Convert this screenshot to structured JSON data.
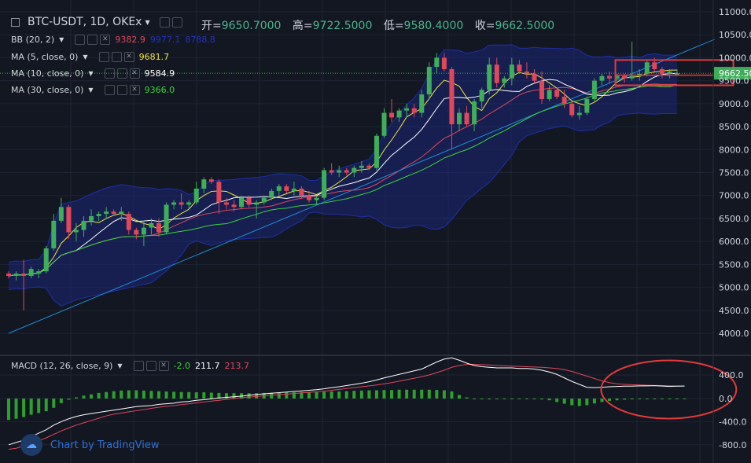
{
  "header": {
    "symbol": "BTC-USDT, 1D, OKEx",
    "open_label": "开",
    "open_value": "9650.7000",
    "high_label": "高",
    "high_value": "9722.5000",
    "low_label": "低",
    "low_value": "9580.4000",
    "close_label": "收",
    "close_value": "9662.5000"
  },
  "indicators": [
    {
      "label": "BB (20, 2)",
      "values": [
        "9382.9",
        "9977.1",
        "8788.8"
      ],
      "colors": [
        "#e0475a",
        "#2233bb",
        "#2233bb"
      ]
    },
    {
      "label": "MA (5, close, 0)",
      "values": [
        "9681.7"
      ],
      "colors": [
        "#f0e442"
      ]
    },
    {
      "label": "MA (10, close, 0)",
      "values": [
        "9584.9"
      ],
      "colors": [
        "#ffffff"
      ]
    },
    {
      "label": "MA (30, close, 0)",
      "values": [
        "9366.0"
      ],
      "colors": [
        "#3bd43b"
      ]
    }
  ],
  "macd": {
    "label": "MACD (12, 26, close, 9)",
    "values": [
      "-2.0",
      "211.7",
      "213.7"
    ],
    "colors": [
      "#3bd43b",
      "#ffffff",
      "#e0475a"
    ]
  },
  "watermark": "Chart by TradingView",
  "price_badge": "9662.500",
  "colors": {
    "up": "#3fae5a",
    "down": "#e0475a",
    "bb": "#1a2a8a",
    "ma5": "#f0e442",
    "ma10": "#ffffff",
    "ma30": "#3bd43b",
    "macd_line": "#ffffff",
    "signal_line": "#e0475a",
    "trend": "#1f8bd6",
    "annotation": "#e23b3b"
  },
  "chart_data": [
    {
      "type": "candlestick",
      "title": "BTC-USDT, 1D, OKEx",
      "y_ticks": [
        4000,
        4500,
        5000,
        5500,
        6000,
        6500,
        7000,
        7500,
        8000,
        8500,
        9000,
        9500,
        10000,
        10500,
        11000
      ],
      "ylim": [
        3850,
        11050
      ],
      "candles": [
        [
          5300,
          5350,
          5200,
          5250
        ],
        [
          5250,
          5350,
          5150,
          5300
        ],
        [
          5300,
          5600,
          4500,
          5250
        ],
        [
          5250,
          5450,
          5200,
          5400
        ],
        [
          5300,
          5400,
          5200,
          5350
        ],
        [
          5350,
          5900,
          5300,
          5850
        ],
        [
          5850,
          6600,
          5800,
          6450
        ],
        [
          6450,
          6950,
          6400,
          6750
        ],
        [
          6750,
          6800,
          6050,
          6200
        ],
        [
          6200,
          6400,
          6000,
          6250
        ],
        [
          6250,
          6550,
          6100,
          6450
        ],
        [
          6450,
          6700,
          6350,
          6550
        ],
        [
          6550,
          6650,
          6450,
          6600
        ],
        [
          6600,
          6750,
          6500,
          6650
        ],
        [
          6650,
          6700,
          6550,
          6600
        ],
        [
          6600,
          6750,
          6450,
          6650
        ],
        [
          6600,
          6650,
          6150,
          6250
        ],
        [
          6250,
          6300,
          6050,
          6150
        ],
        [
          6150,
          6450,
          5900,
          6300
        ],
        [
          6300,
          6500,
          6150,
          6400
        ],
        [
          6400,
          6500,
          6100,
          6200
        ],
        [
          6200,
          6850,
          6150,
          6800
        ],
        [
          6800,
          6900,
          6700,
          6850
        ],
        [
          6850,
          7050,
          6700,
          6800
        ],
        [
          6800,
          6900,
          6700,
          6850
        ],
        [
          6850,
          7300,
          6800,
          7150
        ],
        [
          7150,
          7400,
          7050,
          7350
        ],
        [
          7350,
          7400,
          7250,
          7300
        ],
        [
          7300,
          7350,
          6600,
          6850
        ],
        [
          6850,
          6950,
          6700,
          6800
        ],
        [
          6800,
          6900,
          6650,
          6750
        ],
        [
          6750,
          7000,
          6700,
          6950
        ],
        [
          6950,
          7000,
          6750,
          6800
        ],
        [
          6800,
          6900,
          6500,
          6850
        ],
        [
          6850,
          7000,
          6800,
          6950
        ],
        [
          6950,
          7150,
          6900,
          7100
        ],
        [
          7100,
          7250,
          7000,
          7200
        ],
        [
          7200,
          7250,
          7050,
          7100
        ],
        [
          7100,
          7300,
          7000,
          7150
        ],
        [
          7150,
          7200,
          6950,
          7000
        ],
        [
          7000,
          7100,
          6850,
          6900
        ],
        [
          6900,
          7000,
          6800,
          6950
        ],
        [
          6950,
          7600,
          6900,
          7550
        ],
        [
          7550,
          7700,
          7450,
          7500
        ],
        [
          7500,
          7650,
          7400,
          7550
        ],
        [
          7550,
          7600,
          7450,
          7500
        ],
        [
          7500,
          7650,
          7400,
          7600
        ],
        [
          7600,
          7750,
          7500,
          7650
        ],
        [
          7650,
          7700,
          7550,
          7600
        ],
        [
          7600,
          8350,
          7550,
          8300
        ],
        [
          8300,
          8900,
          8250,
          8800
        ],
        [
          8800,
          9100,
          8600,
          8700
        ],
        [
          8700,
          8900,
          8600,
          8850
        ],
        [
          8850,
          9000,
          8700,
          8900
        ],
        [
          8900,
          9000,
          8700,
          8800
        ],
        [
          8800,
          9300,
          8700,
          9200
        ],
        [
          9200,
          9900,
          9100,
          9800
        ],
        [
          9800,
          10100,
          9650,
          10000
        ],
        [
          10000,
          10100,
          9700,
          9750
        ],
        [
          9750,
          9800,
          8000,
          8550
        ],
        [
          8550,
          8900,
          8400,
          8800
        ],
        [
          8800,
          8950,
          8500,
          8550
        ],
        [
          8550,
          9100,
          8400,
          9050
        ],
        [
          9050,
          9350,
          8900,
          9300
        ],
        [
          9300,
          10000,
          9200,
          9850
        ],
        [
          9850,
          10000,
          9350,
          9450
        ],
        [
          9450,
          9600,
          9350,
          9550
        ],
        [
          9550,
          10000,
          9400,
          9850
        ],
        [
          9850,
          9950,
          9650,
          9700
        ],
        [
          9700,
          9900,
          9550,
          9650
        ],
        [
          9650,
          9750,
          9450,
          9500
        ],
        [
          9500,
          9700,
          9000,
          9100
        ],
        [
          9100,
          9400,
          9050,
          9300
        ],
        [
          9300,
          9350,
          9100,
          9150
        ],
        [
          9150,
          9300,
          8900,
          9000
        ],
        [
          9000,
          9050,
          8700,
          8750
        ],
        [
          8750,
          8950,
          8650,
          8800
        ],
        [
          8800,
          9150,
          8750,
          9100
        ],
        [
          9100,
          9550,
          9050,
          9500
        ],
        [
          9500,
          9650,
          9400,
          9600
        ],
        [
          9600,
          9700,
          9450,
          9550
        ],
        [
          9550,
          9650,
          9500,
          9600
        ],
        [
          9600,
          9650,
          9450,
          9550
        ],
        [
          9550,
          10350,
          9500,
          9600
        ],
        [
          9600,
          9750,
          9500,
          9650
        ],
        [
          9650,
          9950,
          9600,
          9900
        ],
        [
          9900,
          10000,
          9700,
          9750
        ],
        [
          9750,
          9800,
          9550,
          9650
        ],
        [
          9650,
          9750,
          9550,
          9700
        ],
        [
          9650,
          9750,
          9600,
          9660
        ]
      ],
      "trendline": [
        [
          0,
          4000
        ],
        [
          94,
          10400
        ]
      ],
      "annotation_box_price": [
        9400,
        9950
      ],
      "price_line": 9662.5
    },
    {
      "type": "macd",
      "title": "MACD (12, 26, close, 9)",
      "y_ticks": [
        -800,
        -400,
        0,
        400
      ],
      "ylim": [
        -850,
        640
      ],
      "histogram": [
        -370,
        -350,
        -320,
        -280,
        -250,
        -220,
        -160,
        -80,
        -20,
        20,
        50,
        70,
        95,
        110,
        125,
        135,
        140,
        140,
        135,
        130,
        125,
        120,
        115,
        110,
        110,
        105,
        105,
        100,
        95,
        90,
        90,
        90,
        90,
        90,
        95,
        100,
        100,
        105,
        105,
        110,
        110,
        110,
        115,
        120,
        120,
        125,
        130,
        135,
        140,
        140,
        145,
        145,
        150,
        150,
        150,
        150,
        150,
        145,
        140,
        120,
        60,
        20,
        0,
        -10,
        -15,
        -10,
        -5,
        0,
        0,
        0,
        -5,
        -15,
        -30,
        -60,
        -90,
        -115,
        -130,
        -115,
        -85,
        -60,
        -40,
        -30,
        -20,
        -15,
        -10,
        -10,
        -8,
        -5,
        -5,
        -3,
        -2
      ],
      "macd_line": [
        -800,
        -760,
        -720,
        -660,
        -600,
        -540,
        -460,
        -400,
        -350,
        -310,
        -280,
        -260,
        -240,
        -220,
        -200,
        -180,
        -160,
        -140,
        -130,
        -120,
        -100,
        -90,
        -80,
        -60,
        -50,
        -30,
        -20,
        -5,
        10,
        20,
        30,
        40,
        55,
        70,
        80,
        90,
        100,
        110,
        120,
        130,
        140,
        150,
        165,
        185,
        200,
        220,
        240,
        260,
        285,
        315,
        350,
        380,
        410,
        440,
        470,
        500,
        560,
        620,
        670,
        690,
        650,
        600,
        560,
        540,
        530,
        520,
        520,
        520,
        510,
        510,
        500,
        480,
        450,
        410,
        350,
        290,
        240,
        190,
        185,
        190,
        200,
        205,
        210,
        210,
        215,
        215,
        218,
        212,
        205,
        210,
        212
      ],
      "signal_line": [
        -880,
        -860,
        -820,
        -780,
        -730,
        -680,
        -620,
        -560,
        -510,
        -460,
        -420,
        -380,
        -340,
        -300,
        -270,
        -250,
        -230,
        -210,
        -190,
        -170,
        -150,
        -135,
        -120,
        -105,
        -90,
        -75,
        -60,
        -45,
        -30,
        -15,
        0,
        15,
        25,
        35,
        45,
        55,
        65,
        75,
        85,
        95,
        105,
        115,
        125,
        140,
        155,
        170,
        185,
        200,
        215,
        230,
        250,
        270,
        295,
        320,
        345,
        370,
        400,
        440,
        480,
        530,
        560,
        580,
        580,
        575,
        570,
        560,
        555,
        550,
        545,
        540,
        535,
        530,
        520,
        510,
        490,
        460,
        420,
        380,
        340,
        300,
        270,
        250,
        240,
        235,
        230,
        225,
        222,
        220,
        216,
        214,
        213.7
      ],
      "ellipse_center": [
        77,
        20
      ]
    }
  ]
}
